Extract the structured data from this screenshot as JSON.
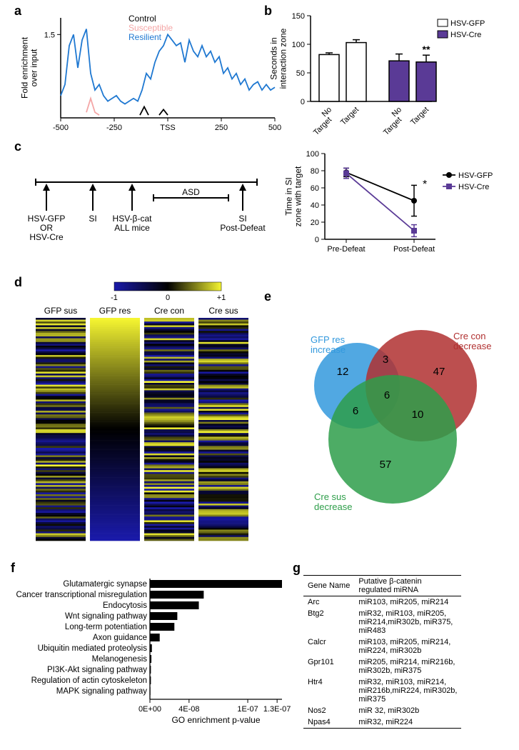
{
  "panelA": {
    "label": "a",
    "ylabel": "Fold enrichment\nover input",
    "legend": {
      "control": {
        "label": "Control",
        "color": "#000000"
      },
      "susceptible": {
        "label": "Susceptible",
        "color": "#f4a6a6"
      },
      "resilient": {
        "label": "Resilient",
        "color": "#1f78d1"
      }
    },
    "xticks": [
      "-500",
      "-250",
      "TSS",
      "250",
      "500"
    ],
    "yticks": [
      "1.5"
    ],
    "ylim": [
      0,
      1.8
    ],
    "xlim": [
      -500,
      500
    ],
    "resilient_path": [
      [
        -500,
        0.4
      ],
      [
        -480,
        0.6
      ],
      [
        -460,
        1.3
      ],
      [
        -440,
        1.5
      ],
      [
        -420,
        0.9
      ],
      [
        -400,
        1.4
      ],
      [
        -380,
        1.6
      ],
      [
        -360,
        0.8
      ],
      [
        -340,
        0.5
      ],
      [
        -320,
        0.6
      ],
      [
        -300,
        0.4
      ],
      [
        -280,
        0.3
      ],
      [
        -260,
        0.35
      ],
      [
        -240,
        0.4
      ],
      [
        -220,
        0.3
      ],
      [
        -200,
        0.25
      ],
      [
        -180,
        0.3
      ],
      [
        -160,
        0.35
      ],
      [
        -140,
        0.3
      ],
      [
        -120,
        0.5
      ],
      [
        -100,
        0.8
      ],
      [
        -80,
        0.7
      ],
      [
        -60,
        1.0
      ],
      [
        -40,
        1.2
      ],
      [
        -20,
        1.3
      ],
      [
        0,
        1.5
      ],
      [
        20,
        1.4
      ],
      [
        40,
        1.3
      ],
      [
        60,
        1.35
      ],
      [
        80,
        1.0
      ],
      [
        100,
        1.4
      ],
      [
        120,
        1.2
      ],
      [
        140,
        1.1
      ],
      [
        160,
        1.3
      ],
      [
        180,
        1.1
      ],
      [
        200,
        1.2
      ],
      [
        220,
        1.0
      ],
      [
        240,
        1.1
      ],
      [
        260,
        0.8
      ],
      [
        280,
        0.9
      ],
      [
        300,
        0.7
      ],
      [
        320,
        0.8
      ],
      [
        340,
        0.6
      ],
      [
        360,
        0.7
      ],
      [
        380,
        0.5
      ],
      [
        400,
        0.6
      ],
      [
        420,
        0.65
      ],
      [
        440,
        0.5
      ],
      [
        460,
        0.6
      ],
      [
        480,
        0.5
      ],
      [
        500,
        0.55
      ]
    ],
    "susceptible_path": [
      [
        -380,
        0.1
      ],
      [
        -360,
        0.35
      ],
      [
        -340,
        0.1
      ],
      [
        -320,
        0.05
      ]
    ],
    "control_path1": [
      [
        -130,
        0.05
      ],
      [
        -110,
        0.2
      ],
      [
        -90,
        0.05
      ]
    ],
    "control_path2": [
      [
        -40,
        0.05
      ],
      [
        -20,
        0.15
      ],
      [
        0,
        0.05
      ]
    ]
  },
  "panelB": {
    "label": "b",
    "ylabel": "Seconds in\ninteraction zone",
    "ylim": [
      0,
      150
    ],
    "yticks": [
      0,
      50,
      100,
      150
    ],
    "xticks": [
      "No\nTarget",
      "Target",
      "No\nTarget",
      "Target"
    ],
    "legend": [
      {
        "label": "HSV-GFP",
        "fill": "#ffffff",
        "stroke": "#000000"
      },
      {
        "label": "HSV-Cre",
        "fill": "#5a3a96",
        "stroke": "#000000"
      }
    ],
    "bars": [
      {
        "x": 0,
        "value": 82,
        "err": 3,
        "fill": "#ffffff"
      },
      {
        "x": 1,
        "value": 103,
        "err": 5,
        "fill": "#ffffff"
      },
      {
        "x": 2,
        "value": 71,
        "err": 12,
        "fill": "#5a3a96"
      },
      {
        "x": 3,
        "value": 69,
        "err": 12,
        "fill": "#5a3a96"
      }
    ],
    "sig_label": "**",
    "sig_over": 3
  },
  "panelC": {
    "label": "c",
    "timeline": {
      "events": [
        "HSV-GFP\nOR\nHSV-Cre",
        "SI",
        "HSV-β-cat\nALL mice",
        "SI\nPost-Defeat"
      ],
      "asd_label": "ASD"
    },
    "chart": {
      "ylabel": "Time in SI\nzone with target",
      "ylim": [
        0,
        100
      ],
      "yticks": [
        0,
        20,
        40,
        60,
        80,
        100
      ],
      "xticks": [
        "Pre-Defeat",
        "Post-Defeat"
      ],
      "series": [
        {
          "label": "HSV-GFP",
          "color": "#000000",
          "marker": "circle",
          "points": [
            [
              0,
              78,
              5
            ],
            [
              1,
              45,
              18
            ]
          ]
        },
        {
          "label": "HSV-Cre",
          "color": "#5a3a96",
          "marker": "square",
          "points": [
            [
              0,
              77,
              6
            ],
            [
              1,
              10,
              7
            ]
          ]
        }
      ],
      "sig_label": "*",
      "sig_x": 1
    }
  },
  "panelD": {
    "label": "d",
    "columns": [
      "GFP sus",
      "GFP res",
      "Cre con",
      "Cre sus"
    ],
    "colorbar": {
      "min": -1,
      "max": 1,
      "low_color": "#1a1aaa",
      "mid_color": "#000000",
      "high_color": "#f5f531"
    },
    "colorbar_ticks": [
      "-1",
      "0",
      "+1"
    ]
  },
  "panelE": {
    "label": "e",
    "sets": {
      "gfp": {
        "label": "GFP res\nincrease",
        "color": "#3399dd",
        "only": 12
      },
      "crecon": {
        "label": "Cre con\ndecrease",
        "color": "#b03030",
        "only": 47
      },
      "cresus": {
        "label": "Cre sus\ndecrease",
        "color": "#2e9e4a",
        "only": 57
      },
      "gfp_crecon": 3,
      "gfp_cresus": 6,
      "crecon_cresus": 10,
      "all": 6
    }
  },
  "panelF": {
    "label": "f",
    "xlabel": "GO enrichment p-value",
    "xticks": [
      "0E+00",
      "4E-08",
      "1E-07",
      "1.3E-07"
    ],
    "xlim": [
      0,
      1.35e-07
    ],
    "categories": [
      {
        "label": "Glutamatergic synapse",
        "value": 1.35e-07
      },
      {
        "label": "Cancer transcriptional misregulation",
        "value": 5.5e-08
      },
      {
        "label": "Endocytosis",
        "value": 5e-08
      },
      {
        "label": "Wnt signaling pathway",
        "value": 2.8e-08
      },
      {
        "label": "Long-term potentiation",
        "value": 2.5e-08
      },
      {
        "label": "Axon guidance",
        "value": 1e-08
      },
      {
        "label": "Ubiquitin mediated proteolysis",
        "value": 2e-09
      },
      {
        "label": "Melanogenesis",
        "value": 1.5e-09
      },
      {
        "label": "PI3K-Akt signaling pathway",
        "value": 1e-09
      },
      {
        "label": "Regulation of actin cytoskeleton",
        "value": 1e-09
      },
      {
        "label": "MAPK signaling pathway",
        "value": 5e-10
      }
    ],
    "bar_color": "#000000"
  },
  "panelG": {
    "label": "g",
    "header": [
      "Gene Name",
      "Putative β-catenin\nregulated miRNA"
    ],
    "rows": [
      [
        "Arc",
        "miR103, miR205, miR214"
      ],
      [
        "Btg2",
        "miR32, miR103, miR205,\nmiR214,miR302b, miR375,\nmiR483"
      ],
      [
        "Calcr",
        "miR103, miR205, miR214,\nmiR224, miR302b"
      ],
      [
        "Gpr101",
        "miR205, miR214, miR216b,\nmiR302b, miR375"
      ],
      [
        "Htr4",
        "miR32, miR103, miR214,\nmiR216b,miR224, miR302b,\nmiR375"
      ],
      [
        "Nos2",
        "miR 32, miR302b"
      ],
      [
        "Npas4",
        "miR32, miR224"
      ]
    ]
  }
}
